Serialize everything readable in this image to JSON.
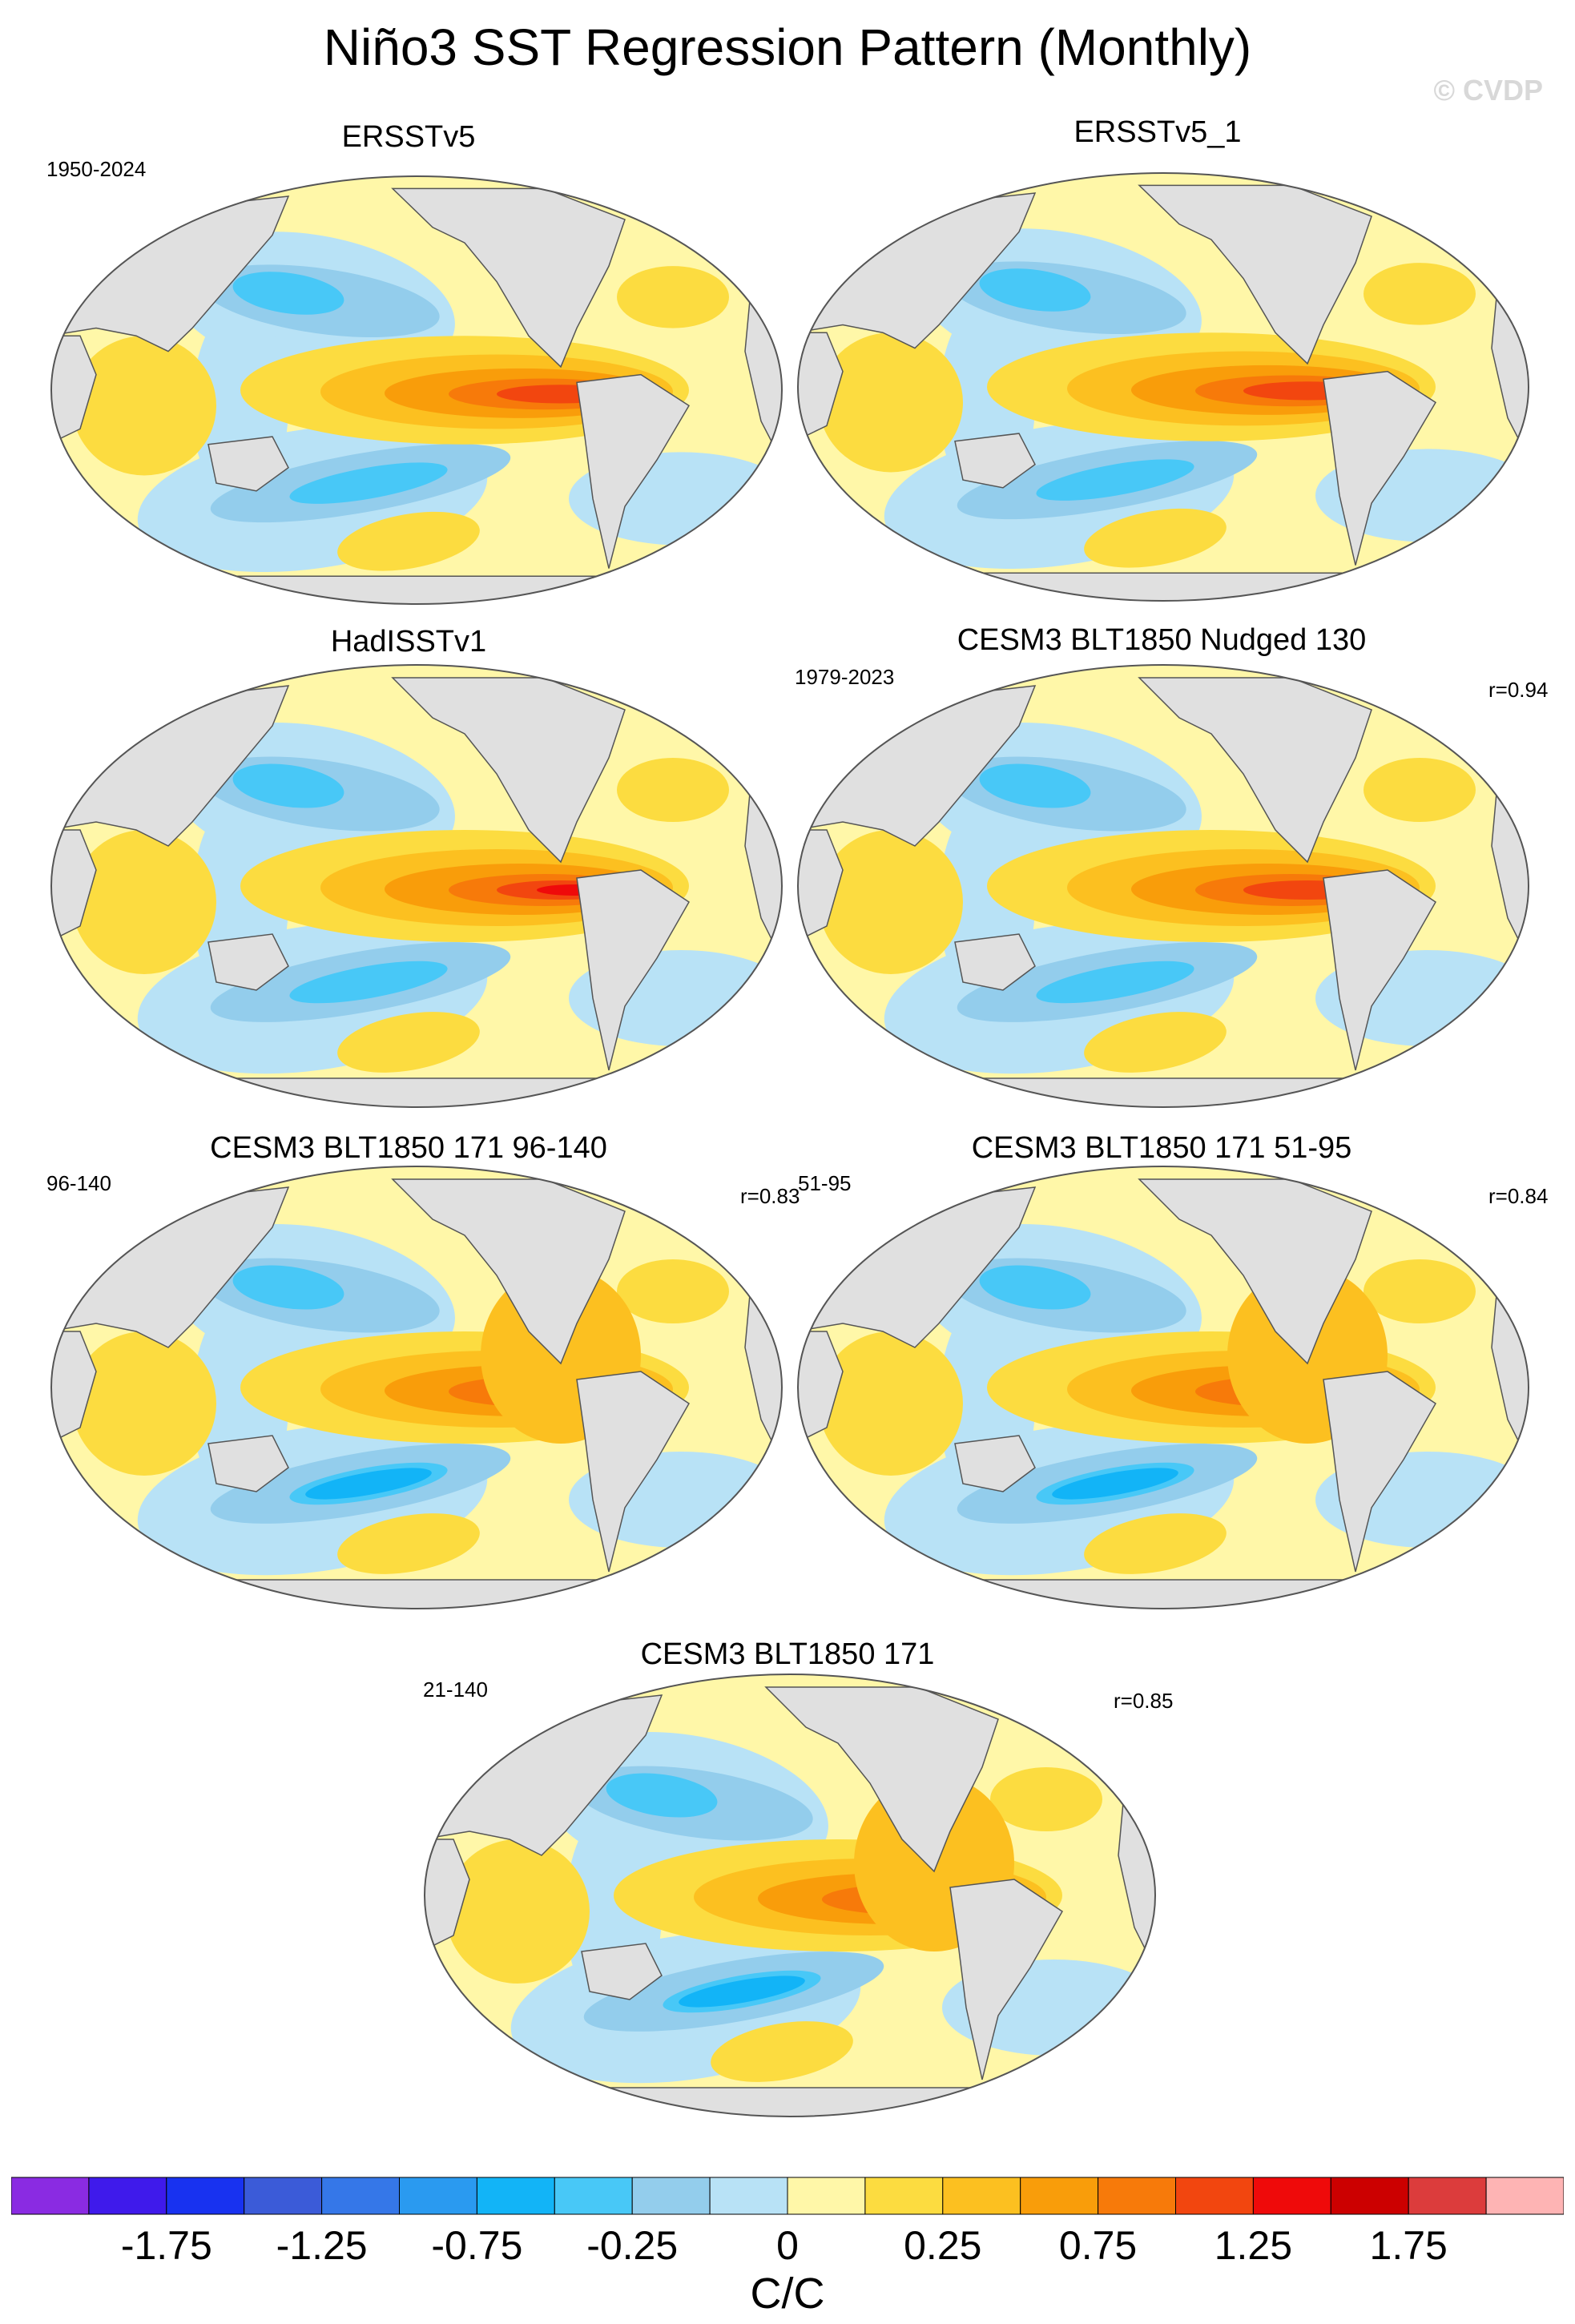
{
  "figure": {
    "title": "Niño3 SST Regression Pattern (Monthly)",
    "watermark": "© CVDP"
  },
  "panels": [
    {
      "title": "ERSSTv5",
      "left_label": "1950-2024",
      "right_label": ""
    },
    {
      "title": "ERSSTv5_1",
      "left_label": "",
      "right_label": ""
    },
    {
      "title": "HadISSTv1",
      "left_label": "",
      "right_label": ""
    },
    {
      "title": "CESM3 BLT1850 Nudged 130",
      "left_label": "1979-2023",
      "right_label": "r=0.94"
    },
    {
      "title": "CESM3 BLT1850 171 96-140",
      "left_label": "96-140",
      "right_label": "r=0.83"
    },
    {
      "title": "CESM3 BLT1850 171 51-95",
      "left_label": "51-95",
      "right_label": "r=0.84"
    },
    {
      "title": "CESM3 BLT1850 171",
      "left_label": "21-140",
      "right_label": "r=0.85"
    }
  ],
  "chart_data": {
    "type": "heatmap",
    "projection": "global map (Robinson-like)",
    "variable": "SST regression onto Niño3 index",
    "units": "C/C",
    "colorbar": {
      "levels": [
        -2.0,
        -1.75,
        -1.5,
        -1.25,
        -1.0,
        -0.75,
        -0.5,
        -0.25,
        -0.1,
        0,
        0.1,
        0.25,
        0.5,
        0.75,
        1.0,
        1.25,
        1.5,
        1.75,
        2.0
      ],
      "colors": [
        "#8a2be2",
        "#3f1aeb",
        "#1832f0",
        "#3b5bd8",
        "#3577e8",
        "#2a9af0",
        "#12b4f7",
        "#48c8f7",
        "#93cdec",
        "#b8e2f6",
        "#fff7a8",
        "#fcdc40",
        "#fcc020",
        "#f99d0a",
        "#f77a0a",
        "#f2460f",
        "#ef0a0a",
        "#cc0000",
        "#dc3c3c",
        "#feb4b4"
      ],
      "tick_labels": [
        "-1.75",
        "-1.25",
        "-0.75",
        "-0.25",
        "0",
        "0.25",
        "0.75",
        "1.25",
        "1.75"
      ],
      "units_label": "C/C"
    },
    "maps": [
      {
        "name": "ERSSTv5",
        "max_eq_pacific": 1.5
      },
      {
        "name": "ERSSTv5_1",
        "max_eq_pacific": 1.5
      },
      {
        "name": "HadISSTv1",
        "max_eq_pacific": 1.75
      },
      {
        "name": "CESM3 BLT1850 Nudged 130",
        "max_eq_pacific": 1.5,
        "r": 0.94
      },
      {
        "name": "CESM3 BLT1850 171 96-140",
        "max_eq_pacific": 1.5,
        "r": 0.83
      },
      {
        "name": "CESM3 BLT1850 171 51-95",
        "max_eq_pacific": 1.5,
        "r": 0.84
      },
      {
        "name": "CESM3 BLT1850 171",
        "max_eq_pacific": 1.5,
        "r": 0.85
      }
    ]
  }
}
